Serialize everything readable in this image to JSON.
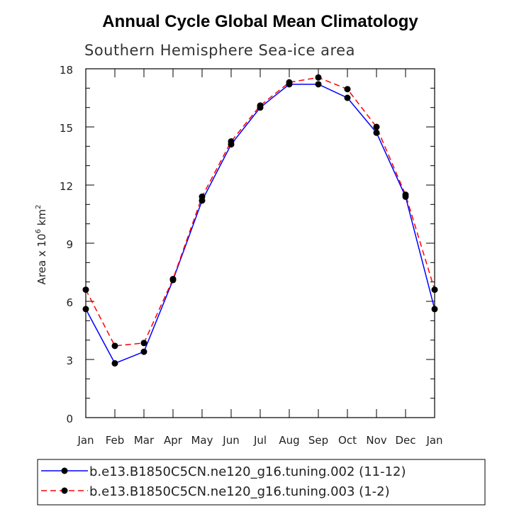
{
  "chart_data": {
    "type": "line",
    "title": "Annual Cycle Global Mean Climatology",
    "subtitle": "Southern Hemisphere Sea-ice area",
    "ylabel_prefix": "Area x 10",
    "ylabel_exponent": "6",
    "ylabel_unit": "km",
    "ylabel_unit_exponent": "2",
    "categories": [
      "Jan",
      "Feb",
      "Mar",
      "Apr",
      "May",
      "Jun",
      "Jul",
      "Aug",
      "Sep",
      "Oct",
      "Nov",
      "Dec",
      "Jan"
    ],
    "ylim": [
      0,
      18
    ],
    "yticks": [
      0,
      3,
      6,
      9,
      12,
      15,
      18
    ],
    "ytick_labels": [
      "0",
      "3",
      "6",
      "9",
      "12",
      "15",
      "18"
    ],
    "series": [
      {
        "name": "b.e13.B1850C5CN.ne120_g16.tuning.002 (11-12)",
        "color": "#0000ff",
        "dash": "solid",
        "values": [
          5.6,
          2.8,
          3.4,
          7.1,
          11.2,
          14.1,
          16.0,
          17.2,
          17.2,
          16.5,
          14.7,
          11.4,
          5.6
        ]
      },
      {
        "name": "b.e13.B1850C5CN.ne120_g16.tuning.003 (1-2)",
        "color": "#ff0000",
        "dash": "dashed",
        "values": [
          6.6,
          3.7,
          3.85,
          7.15,
          11.4,
          14.25,
          16.1,
          17.3,
          17.55,
          16.95,
          15.0,
          11.5,
          6.6
        ]
      }
    ],
    "legend_position": "bottom"
  }
}
